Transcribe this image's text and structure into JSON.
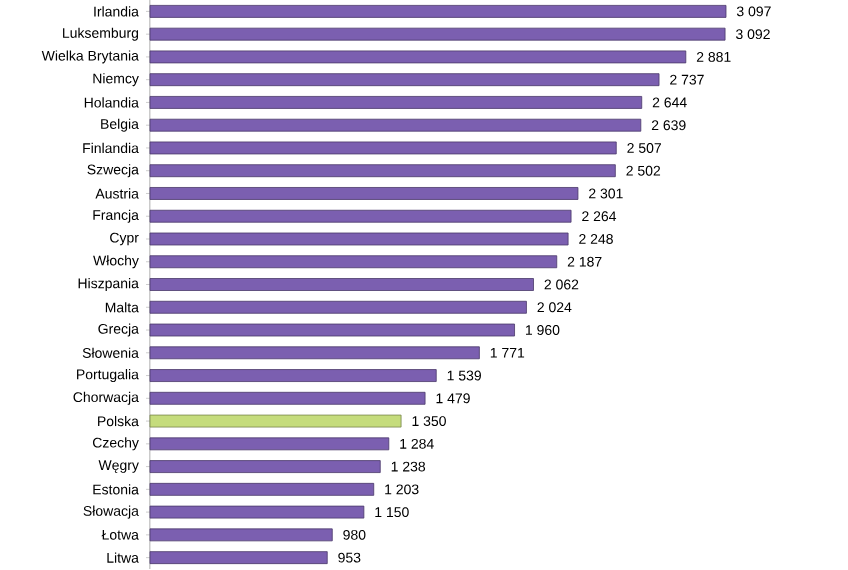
{
  "chart_data": {
    "type": "bar",
    "orientation": "horizontal",
    "categories": [
      "Irlandia",
      "Luksemburg",
      "Wielka Brytania",
      "Niemcy",
      "Holandia",
      "Belgia",
      "Finlandia",
      "Szwecja",
      "Austria",
      "Francja",
      "Cypr",
      "Włochy",
      "Hiszpania",
      "Malta",
      "Grecja",
      "Słowenia",
      "Portugalia",
      "Chorwacja",
      "Polska",
      "Czechy",
      "Węgry",
      "Estonia",
      "Słowacja",
      "Łotwa",
      "Litwa"
    ],
    "values": [
      3097,
      3092,
      2881,
      2737,
      2644,
      2639,
      2507,
      2502,
      2301,
      2264,
      2248,
      2187,
      2062,
      2024,
      1960,
      1771,
      1539,
      1479,
      1350,
      1284,
      1238,
      1203,
      1150,
      980,
      953
    ],
    "value_labels": [
      "3 097",
      "3 092",
      "2 881",
      "2 737",
      "2 644",
      "2 639",
      "2 507",
      "2 502",
      "2 301",
      "2 264",
      "2 248",
      "2 187",
      "2 062",
      "2 024",
      "1 960",
      "1 771",
      "1 539",
      "1 479",
      "1 350",
      "1 284",
      "1 238",
      "1 203",
      "1 150",
      "980",
      "953"
    ],
    "colors": [
      "#7b5fb0",
      "#7b5fb0",
      "#7b5fb0",
      "#7b5fb0",
      "#7b5fb0",
      "#7b5fb0",
      "#7b5fb0",
      "#7b5fb0",
      "#7b5fb0",
      "#7b5fb0",
      "#7b5fb0",
      "#7b5fb0",
      "#7b5fb0",
      "#7b5fb0",
      "#7b5fb0",
      "#7b5fb0",
      "#7b5fb0",
      "#7b5fb0",
      "#c5dc7c",
      "#7b5fb0",
      "#7b5fb0",
      "#7b5fb0",
      "#7b5fb0",
      "#7b5fb0",
      "#7b5fb0"
    ]
  }
}
